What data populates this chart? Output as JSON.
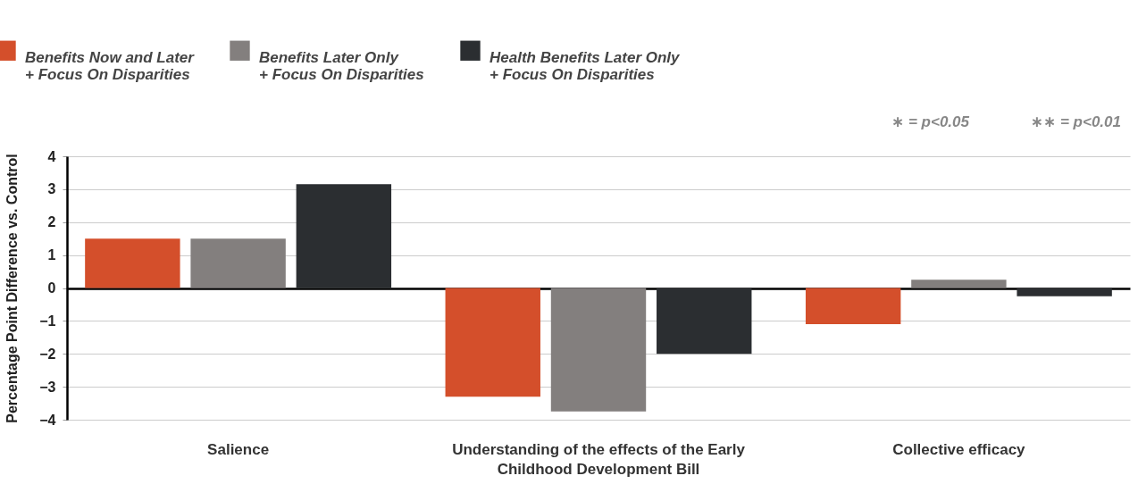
{
  "chart_data": {
    "type": "bar",
    "ylabel": "Percentage Point Difference vs. Control",
    "categories": [
      "Salience",
      "Understanding of the effects of the Early Childhood Development Bill",
      "Collective efficacy"
    ],
    "series": [
      {
        "name": "Benefits Now and Later + Focus On Disparities",
        "color": "#d44f2b",
        "values": [
          1.5,
          -3.3,
          -1.1
        ]
      },
      {
        "name": "Benefits Later Only + Focus On Disparities",
        "color": "#837f7e",
        "values": [
          1.5,
          -3.75,
          0.25
        ]
      },
      {
        "name": "Health Benefits Later Only + Focus On Disparities",
        "color": "#2b2e31",
        "values": [
          3.15,
          -2.0,
          -0.25
        ]
      }
    ],
    "ylim": [
      -4,
      4
    ],
    "yticks": [
      -4,
      -3,
      -2,
      -1,
      0,
      1,
      2,
      3,
      4
    ],
    "grid": "y",
    "legend": "top left",
    "annotations": [
      "∗ = p<0.05",
      "∗∗ = p<0.01"
    ]
  }
}
